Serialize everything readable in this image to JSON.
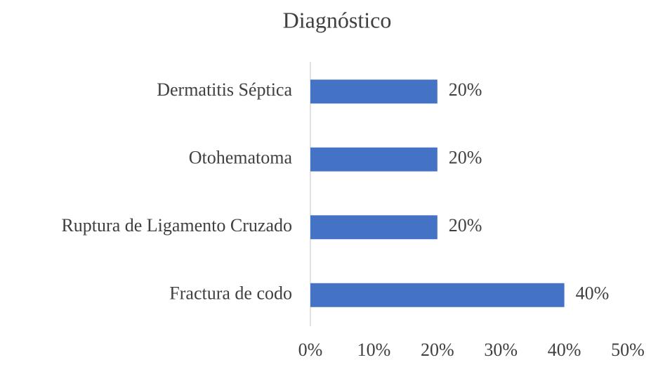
{
  "chart_data": {
    "type": "bar",
    "orientation": "horizontal",
    "title": "Diagnóstico",
    "categories": [
      "Dermatitis Séptica",
      "Otohematoma",
      "Ruptura de Ligamento Cruzado",
      "Fractura de codo"
    ],
    "values": [
      20,
      20,
      20,
      40
    ],
    "value_labels": [
      "20%",
      "20%",
      "20%",
      "40%"
    ],
    "color": "#4472c4",
    "xlim": [
      0,
      50
    ],
    "xticks": [
      {
        "value": 0,
        "label": "0%"
      },
      {
        "value": 10,
        "label": "10%"
      },
      {
        "value": 20,
        "label": "20%"
      },
      {
        "value": 30,
        "label": "30%"
      },
      {
        "value": 40,
        "label": "40%"
      },
      {
        "value": 50,
        "label": "50%"
      }
    ],
    "grid": false
  }
}
